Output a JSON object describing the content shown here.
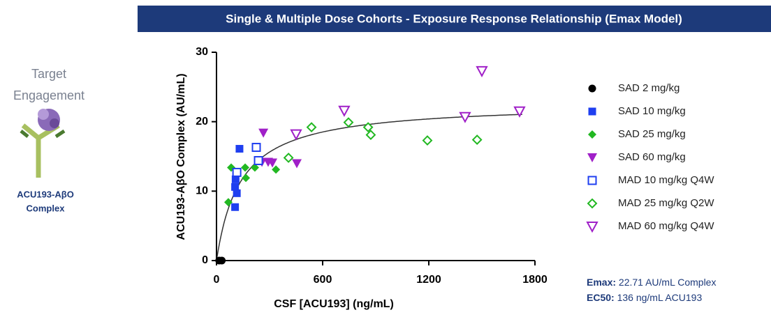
{
  "header": {
    "title": "Single & Multiple Dose Cohorts  -  Exposure Response Relationship  (Emax Model)"
  },
  "side": {
    "heading": "Target Engagement",
    "label": "ACU193-AβO Complex"
  },
  "chart_data": {
    "type": "scatter",
    "xlabel": "CSF [ACU193] (ng/mL)",
    "ylabel": "ACU193-AβO Complex (AU/mL)",
    "xlim": [
      0,
      1800
    ],
    "ylim": [
      0,
      30
    ],
    "xticks": [
      0,
      600,
      1200,
      1800
    ],
    "yticks": [
      0,
      10,
      20,
      30
    ],
    "series": [
      {
        "name": "SAD 2 mg/kg",
        "color": "#000000",
        "marker": "circle",
        "filled": true,
        "x": [
          15,
          30
        ],
        "values": [
          0,
          0
        ]
      },
      {
        "name": "SAD 10 mg/kg",
        "color": "#1f3ff0",
        "marker": "square",
        "filled": true,
        "x": [
          130,
          108,
          105,
          115,
          105
        ],
        "values": [
          16.1,
          11.7,
          10.6,
          9.7,
          7.7
        ]
      },
      {
        "name": "SAD 25 mg/kg",
        "color": "#22b822",
        "marker": "diamond",
        "filled": true,
        "x": [
          67,
          83,
          166,
          162,
          217,
          336
        ],
        "values": [
          8.4,
          13.4,
          11.9,
          13.4,
          13.4,
          13.1
        ]
      },
      {
        "name": "SAD 60 mg/kg",
        "color": "#a020c8",
        "marker": "triangle",
        "filled": true,
        "x": [
          265,
          257,
          292,
          316,
          454
        ],
        "values": [
          18.4,
          14.2,
          14.2,
          14.1,
          14.0
        ]
      },
      {
        "name": "MAD 10 mg/kg Q4W",
        "color": "#1f3ff0",
        "marker": "square",
        "filled": false,
        "x": [
          115,
          225,
          237
        ],
        "values": [
          12.7,
          16.3,
          14.4
        ]
      },
      {
        "name": "MAD 25 mg/kg Q2W",
        "color": "#22b822",
        "marker": "diamond",
        "filled": false,
        "x": [
          407,
          537,
          746,
          857,
          872,
          1192,
          1473
        ],
        "values": [
          14.8,
          19.2,
          19.9,
          19.2,
          18.1,
          17.3,
          17.4
        ]
      },
      {
        "name": "MAD 60 mg/kg Q4W",
        "color": "#a020c8",
        "marker": "triangle",
        "filled": false,
        "x": [
          450,
          722,
          1405,
          1500,
          1713
        ],
        "values": [
          18.2,
          21.6,
          20.7,
          27.3,
          21.5
        ]
      }
    ],
    "model": {
      "emax_label": "Emax:",
      "emax_text": "22.71 AU/mL Complex",
      "emax": 22.71,
      "ec50_label": "EC50:",
      "ec50_text": "136 ng/mL ACU193",
      "ec50": 136
    }
  }
}
